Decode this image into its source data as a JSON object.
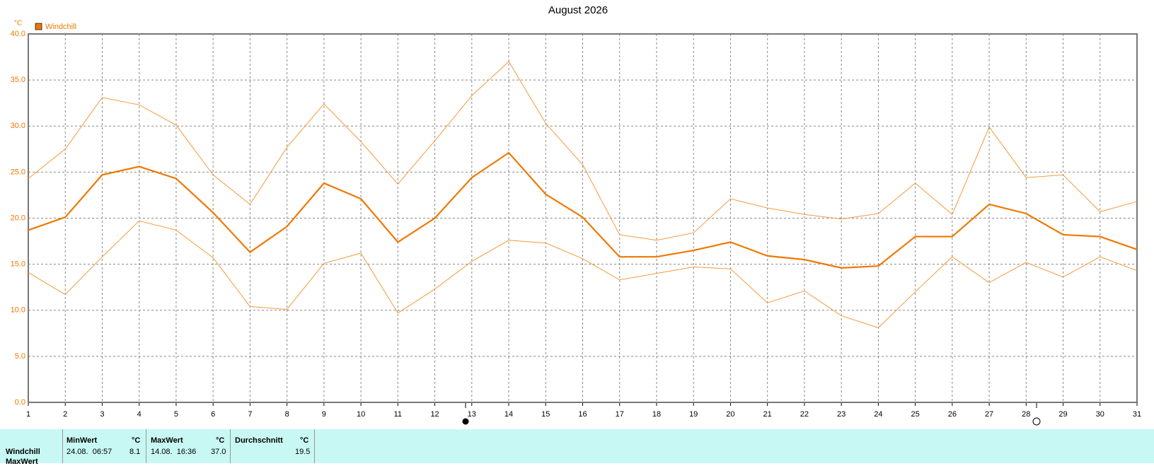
{
  "chart_data": {
    "type": "line",
    "title": "August 2026",
    "y_unit": "°C",
    "x": [
      1,
      2,
      3,
      4,
      5,
      6,
      7,
      8,
      9,
      10,
      11,
      12,
      13,
      14,
      15,
      16,
      17,
      18,
      19,
      20,
      21,
      22,
      23,
      24,
      25,
      26,
      27,
      28,
      29,
      30,
      31
    ],
    "xlim": [
      1,
      31
    ],
    "xticks": [
      1,
      2,
      3,
      4,
      5,
      6,
      7,
      8,
      9,
      10,
      11,
      12,
      13,
      14,
      15,
      16,
      17,
      18,
      19,
      20,
      21,
      22,
      23,
      24,
      25,
      26,
      27,
      28,
      29,
      30,
      31
    ],
    "ylim": [
      0,
      40
    ],
    "yticks": [
      {
        "value": 0,
        "label": "0.0"
      },
      {
        "value": 5,
        "label": "5.0"
      },
      {
        "value": 10,
        "label": "10.0"
      },
      {
        "value": 15,
        "label": "15.0"
      },
      {
        "value": 20,
        "label": "20.0"
      },
      {
        "value": 25,
        "label": "25.0"
      },
      {
        "value": 30,
        "label": "30.0"
      },
      {
        "value": 35,
        "label": "35.0"
      },
      {
        "value": 40,
        "label": "40.0"
      }
    ],
    "grid": true,
    "series": [
      {
        "name": "Windchill",
        "color": "#f07800",
        "values": [
          18.7,
          20.1,
          24.7,
          25.6,
          24.3,
          20.6,
          16.3,
          19.1,
          23.8,
          22.1,
          17.4,
          20.0,
          24.4,
          27.1,
          22.6,
          20.1,
          15.8,
          15.8,
          16.5,
          17.4,
          15.9,
          15.5,
          14.6,
          14.8,
          18.0,
          18.0,
          21.5,
          20.5,
          18.2,
          18.0,
          16.6
        ]
      },
      {
        "color": "#f59a3c",
        "values": [
          24.3,
          27.5,
          33.1,
          32.3,
          30.1,
          24.7,
          21.5,
          27.7,
          32.4,
          28.3,
          23.7,
          28.4,
          33.3,
          37.0,
          30.3,
          25.8,
          18.2,
          17.6,
          18.4,
          22.1,
          21.1,
          20.4,
          19.9,
          20.5,
          23.8,
          20.4,
          29.9,
          24.4,
          24.7,
          20.7,
          21.8
        ]
      },
      {
        "color": "#f59a3c",
        "values": [
          14.1,
          11.7,
          15.8,
          19.7,
          18.7,
          15.7,
          10.4,
          10.1,
          15.1,
          16.2,
          9.7,
          12.3,
          15.3,
          17.6,
          17.3,
          15.6,
          13.3,
          14.0,
          14.7,
          14.5,
          10.8,
          12.1,
          9.4,
          8.1,
          12.0,
          15.8,
          13.0,
          15.2,
          13.6,
          15.8,
          14.3
        ]
      }
    ]
  },
  "table": {
    "header": [
      "MinWert",
      "°C",
      "MaxWert",
      "°C",
      "Durchschnitt",
      "°C"
    ],
    "rows": [
      [
        "Windchill",
        "24.08.  06:57",
        "8.1",
        "14.08.  16:36",
        "37.0",
        "19.5"
      ],
      [
        "MaxWert"
      ]
    ]
  }
}
